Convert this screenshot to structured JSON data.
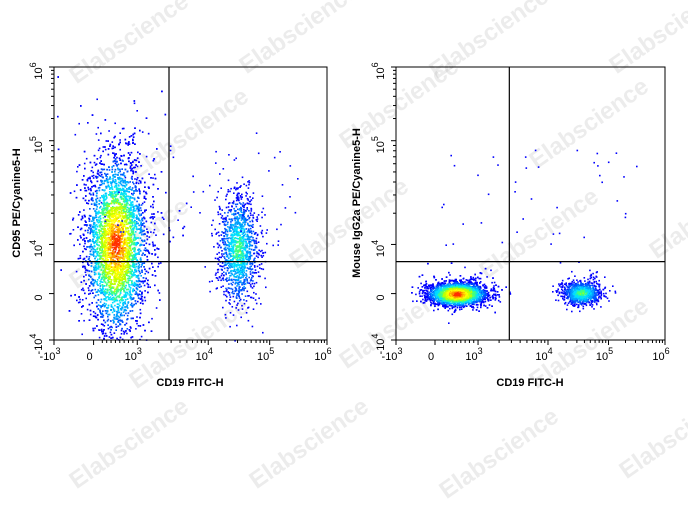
{
  "watermark": "Elabscience",
  "colors": {
    "low": "#0000ff",
    "mid": "#00c8ff",
    "high": "#ffff00",
    "max": "#ff0000",
    "gate_line": "#000000"
  },
  "chart_data": [
    {
      "type": "scatter",
      "title": "",
      "xlabel": "CD19 FITC-H",
      "ylabel": "CD95 PE/Cyanine5-H",
      "x_scale": "biexponential",
      "y_scale": "biexponential",
      "xlim": [
        -1000,
        1000000
      ],
      "ylim": [
        -10000,
        1000000
      ],
      "x_ticks": [
        {
          "value": -1000,
          "base": "-10",
          "exp": "3"
        },
        {
          "value": 0,
          "base": "0",
          "exp": ""
        },
        {
          "value": 1000,
          "base": "10",
          "exp": "3"
        },
        {
          "value": 10000,
          "base": "10",
          "exp": "4"
        },
        {
          "value": 100000,
          "base": "10",
          "exp": "5"
        },
        {
          "value": 1000000,
          "base": "10",
          "exp": "6"
        }
      ],
      "y_ticks": [
        {
          "value": -10000,
          "base": "-10",
          "exp": "4"
        },
        {
          "value": 0,
          "base": "0",
          "exp": ""
        },
        {
          "value": 10000,
          "base": "10",
          "exp": "4"
        },
        {
          "value": 100000,
          "base": "10",
          "exp": "5"
        },
        {
          "value": 1000000,
          "base": "10",
          "exp": "6"
        }
      ],
      "gate": {
        "x": 2800,
        "y": 6500
      },
      "populations": [
        {
          "name": "CD19- CD95+",
          "x_center": 500,
          "y_center": 10000,
          "density": "high"
        },
        {
          "name": "CD19+ CD95+",
          "x_center": 30000,
          "y_center": 9000,
          "density": "medium"
        }
      ]
    },
    {
      "type": "scatter",
      "title": "",
      "xlabel": "CD19 FITC-H",
      "ylabel": "Mouse IgG2a PE/Cyanine5-H",
      "x_scale": "biexponential",
      "y_scale": "biexponential",
      "xlim": [
        -1000,
        1000000
      ],
      "ylim": [
        -10000,
        1000000
      ],
      "x_ticks": [
        {
          "value": -1000,
          "base": "-10",
          "exp": "3"
        },
        {
          "value": 0,
          "base": "0",
          "exp": ""
        },
        {
          "value": 1000,
          "base": "10",
          "exp": "3"
        },
        {
          "value": 10000,
          "base": "10",
          "exp": "4"
        },
        {
          "value": 100000,
          "base": "10",
          "exp": "5"
        },
        {
          "value": 1000000,
          "base": "10",
          "exp": "6"
        }
      ],
      "y_ticks": [
        {
          "value": -10000,
          "base": "-10",
          "exp": "4"
        },
        {
          "value": 0,
          "base": "0",
          "exp": ""
        },
        {
          "value": 10000,
          "base": "10",
          "exp": "4"
        },
        {
          "value": 100000,
          "base": "10",
          "exp": "5"
        },
        {
          "value": 1000000,
          "base": "10",
          "exp": "6"
        }
      ],
      "gate": {
        "x": 2800,
        "y": 6500
      },
      "populations": [
        {
          "name": "CD19- isotype",
          "x_center": 500,
          "y_center": 0,
          "density": "high"
        },
        {
          "name": "CD19+ isotype",
          "x_center": 35000,
          "y_center": 200,
          "density": "medium"
        }
      ]
    }
  ]
}
